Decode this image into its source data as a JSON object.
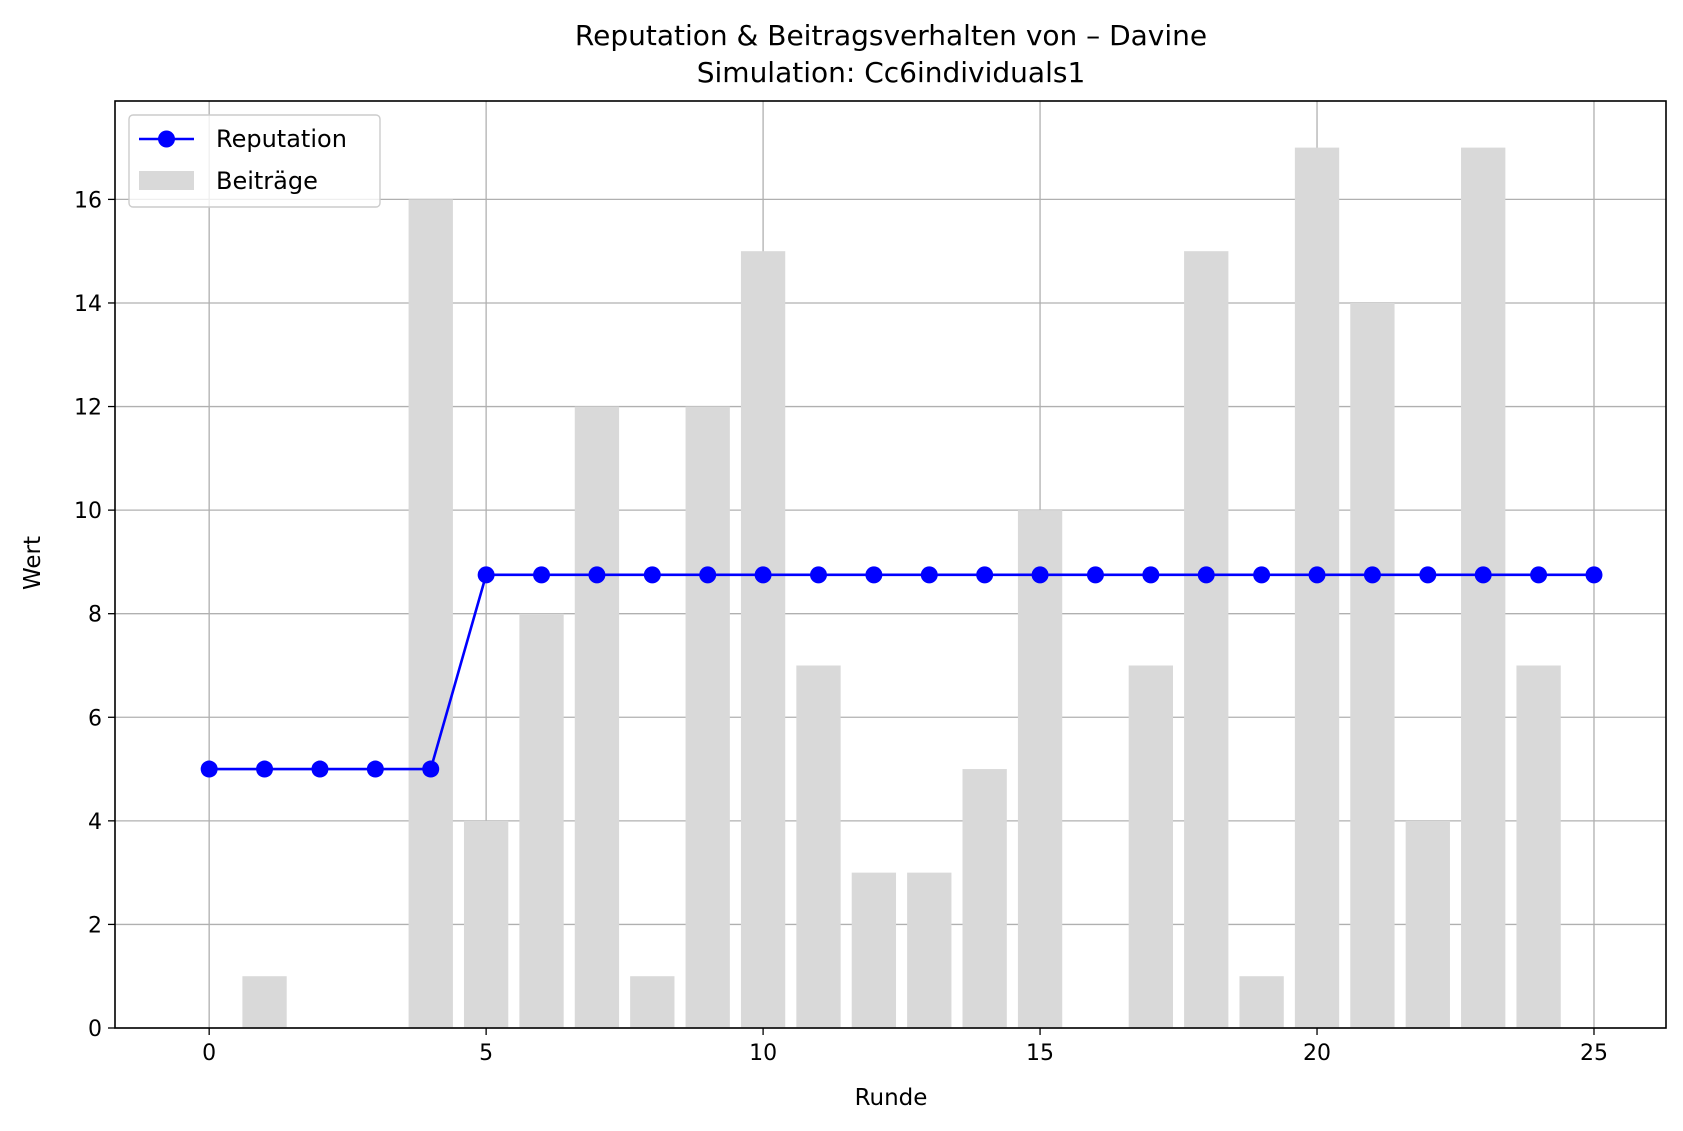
{
  "chart_data": {
    "type": "bar+line",
    "title": "Reputation & Beitragsverhalten von – Davine",
    "subtitle": "Simulation: Cc6individuals1",
    "xlabel": "Runde",
    "ylabel": "Wert",
    "xlim": [
      -1.7,
      26.3
    ],
    "ylim": [
      0,
      17.9
    ],
    "x_ticks": [
      0,
      5,
      10,
      15,
      20,
      25
    ],
    "y_ticks": [
      0,
      2,
      4,
      6,
      8,
      10,
      12,
      14,
      16
    ],
    "grid": true,
    "legend_position": "top-left",
    "x": [
      0,
      1,
      2,
      3,
      4,
      5,
      6,
      7,
      8,
      9,
      10,
      11,
      12,
      13,
      14,
      15,
      16,
      17,
      18,
      19,
      20,
      21,
      22,
      23,
      24,
      25
    ],
    "series": [
      {
        "name": "Reputation",
        "kind": "line",
        "color": "#0000ff",
        "marker": "circle",
        "values": [
          5,
          5,
          5,
          5,
          5,
          8.75,
          8.75,
          8.75,
          8.75,
          8.75,
          8.75,
          8.75,
          8.75,
          8.75,
          8.75,
          8.75,
          8.75,
          8.75,
          8.75,
          8.75,
          8.75,
          8.75,
          8.75,
          8.75,
          8.75,
          8.75
        ]
      },
      {
        "name": "Beiträge",
        "kind": "bar",
        "color": "#d9d9d9",
        "values": [
          0,
          1,
          0,
          0,
          16,
          4,
          8,
          12,
          1,
          12,
          15,
          7,
          3,
          3,
          5,
          10,
          0,
          7,
          15,
          1,
          17,
          14,
          4,
          17,
          7,
          0
        ]
      }
    ]
  }
}
